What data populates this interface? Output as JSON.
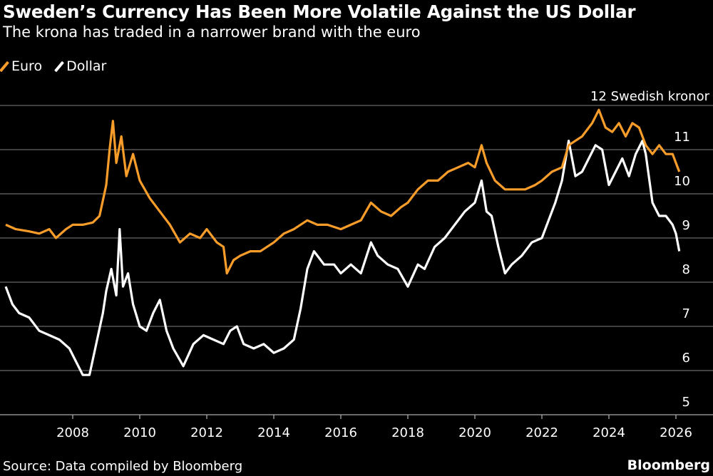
{
  "title": "Sweden’s Currency Has Been More Volatile Against the US Dollar",
  "subtitle": "The krona has traded in a narrower brand with the euro",
  "source": "Source: Data compiled by Bloomberg",
  "brand": "Bloomberg",
  "chart_data": {
    "type": "line",
    "ylabel": "12 Swedish kronor",
    "ylim": [
      5,
      12
    ],
    "xlim": [
      2006,
      2026.3
    ],
    "grid": true,
    "legend": "top-left",
    "y_ticks": [
      "5",
      "6",
      "7",
      "8",
      "9",
      "10",
      "11"
    ],
    "y_top_label": "12 Swedish kronor",
    "x_ticks": [
      "2008",
      "2010",
      "2012",
      "2014",
      "2016",
      "2018",
      "2020",
      "2022",
      "2024",
      "2026"
    ],
    "series": [
      {
        "name": "Euro",
        "color": "#f99d2a",
        "x": [
          2006.0,
          2006.3,
          2006.7,
          2007.0,
          2007.3,
          2007.5,
          2007.8,
          2008.0,
          2008.3,
          2008.6,
          2008.8,
          2009.0,
          2009.1,
          2009.2,
          2009.3,
          2009.45,
          2009.6,
          2009.8,
          2010.0,
          2010.3,
          2010.6,
          2010.9,
          2011.2,
          2011.5,
          2011.8,
          2012.0,
          2012.3,
          2012.5,
          2012.6,
          2012.8,
          2013.0,
          2013.3,
          2013.6,
          2014.0,
          2014.3,
          2014.6,
          2015.0,
          2015.3,
          2015.6,
          2016.0,
          2016.3,
          2016.6,
          2016.9,
          2017.2,
          2017.5,
          2017.8,
          2018.0,
          2018.3,
          2018.6,
          2018.9,
          2019.2,
          2019.5,
          2019.8,
          2020.0,
          2020.2,
          2020.35,
          2020.6,
          2020.9,
          2021.2,
          2021.5,
          2021.8,
          2022.0,
          2022.3,
          2022.6,
          2022.8,
          2023.0,
          2023.2,
          2023.5,
          2023.7,
          2023.9,
          2024.1,
          2024.3,
          2024.5,
          2024.7,
          2024.9,
          2025.1,
          2025.3,
          2025.5,
          2025.7,
          2025.9,
          2026.1
        ],
        "y": [
          9.3,
          9.2,
          9.15,
          9.1,
          9.2,
          9.0,
          9.2,
          9.3,
          9.3,
          9.35,
          9.5,
          10.2,
          11.0,
          11.65,
          10.7,
          11.3,
          10.4,
          10.9,
          10.3,
          9.9,
          9.6,
          9.3,
          8.9,
          9.1,
          9.0,
          9.2,
          8.9,
          8.8,
          8.2,
          8.5,
          8.6,
          8.7,
          8.7,
          8.9,
          9.1,
          9.2,
          9.4,
          9.3,
          9.3,
          9.2,
          9.3,
          9.4,
          9.8,
          9.6,
          9.5,
          9.7,
          9.8,
          10.1,
          10.3,
          10.3,
          10.5,
          10.6,
          10.7,
          10.6,
          11.1,
          10.7,
          10.3,
          10.1,
          10.1,
          10.1,
          10.2,
          10.3,
          10.5,
          10.6,
          11.1,
          11.2,
          11.3,
          11.6,
          11.9,
          11.5,
          11.4,
          11.6,
          11.3,
          11.6,
          11.5,
          11.1,
          10.9,
          11.1,
          10.9,
          10.9,
          10.5
        ]
      },
      {
        "name": "Dollar",
        "color": "#ffffff",
        "x": [
          2006.0,
          2006.2,
          2006.4,
          2006.7,
          2007.0,
          2007.3,
          2007.6,
          2007.9,
          2008.1,
          2008.3,
          2008.5,
          2008.7,
          2008.9,
          2009.0,
          2009.15,
          2009.3,
          2009.4,
          2009.5,
          2009.65,
          2009.8,
          2010.0,
          2010.2,
          2010.4,
          2010.6,
          2010.8,
          2011.0,
          2011.3,
          2011.6,
          2011.9,
          2012.2,
          2012.5,
          2012.7,
          2012.9,
          2013.1,
          2013.4,
          2013.7,
          2014.0,
          2014.3,
          2014.6,
          2014.8,
          2015.0,
          2015.2,
          2015.5,
          2015.8,
          2016.0,
          2016.3,
          2016.6,
          2016.9,
          2017.1,
          2017.4,
          2017.7,
          2018.0,
          2018.3,
          2018.5,
          2018.8,
          2019.1,
          2019.4,
          2019.7,
          2020.0,
          2020.2,
          2020.35,
          2020.5,
          2020.7,
          2020.9,
          2021.1,
          2021.4,
          2021.7,
          2022.0,
          2022.2,
          2022.4,
          2022.6,
          2022.8,
          2023.0,
          2023.2,
          2023.4,
          2023.6,
          2023.8,
          2024.0,
          2024.2,
          2024.4,
          2024.6,
          2024.8,
          2025.0,
          2025.1,
          2025.3,
          2025.5,
          2025.7,
          2025.9,
          2026.0,
          2026.1
        ],
        "y": [
          7.9,
          7.5,
          7.3,
          7.2,
          6.9,
          6.8,
          6.7,
          6.5,
          6.2,
          5.9,
          5.9,
          6.6,
          7.3,
          7.8,
          8.3,
          7.7,
          9.2,
          7.9,
          8.2,
          7.5,
          7.0,
          6.9,
          7.3,
          7.6,
          6.9,
          6.5,
          6.1,
          6.6,
          6.8,
          6.7,
          6.6,
          6.9,
          7.0,
          6.6,
          6.5,
          6.6,
          6.4,
          6.5,
          6.7,
          7.4,
          8.3,
          8.7,
          8.4,
          8.4,
          8.2,
          8.4,
          8.2,
          8.9,
          8.6,
          8.4,
          8.3,
          7.9,
          8.4,
          8.3,
          8.8,
          9.0,
          9.3,
          9.6,
          9.8,
          10.3,
          9.6,
          9.5,
          8.8,
          8.2,
          8.4,
          8.6,
          8.9,
          9.0,
          9.4,
          9.8,
          10.3,
          11.2,
          10.4,
          10.5,
          10.8,
          11.1,
          11.0,
          10.2,
          10.5,
          10.8,
          10.4,
          10.9,
          11.2,
          10.9,
          9.8,
          9.5,
          9.5,
          9.3,
          9.1,
          8.7
        ]
      }
    ]
  }
}
